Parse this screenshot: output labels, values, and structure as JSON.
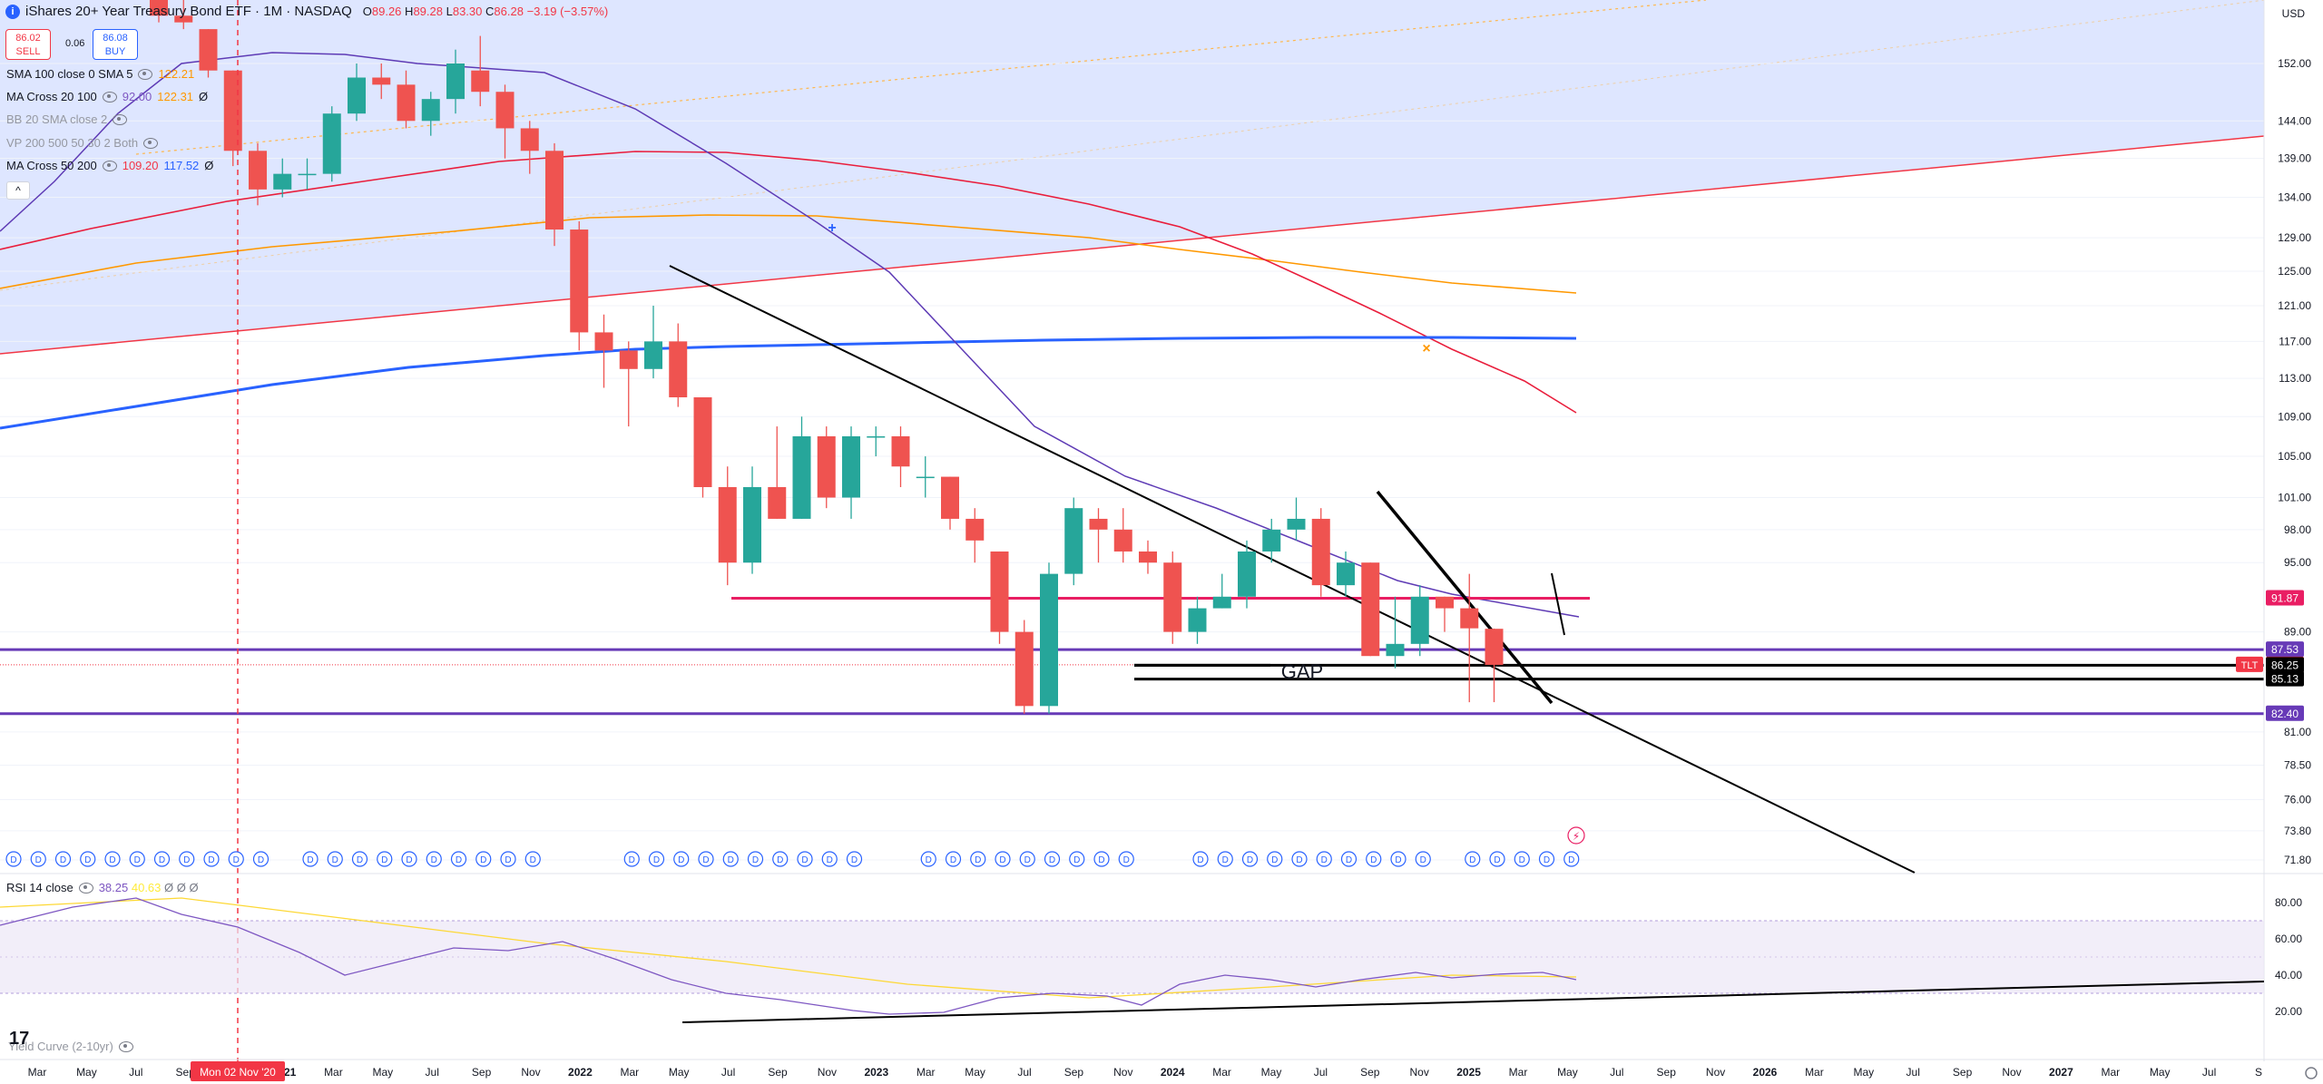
{
  "header": {
    "title": "iShares 20+ Year Treasury Bond ETF · 1M · NASDAQ",
    "ohlc": {
      "o_label": "O",
      "o": "89.26",
      "h_label": "H",
      "h": "89.28",
      "l_label": "L",
      "l": "83.30",
      "c_label": "C",
      "c": "86.28",
      "change": "−3.19 (−3.57%)"
    },
    "sell_price": "86.02",
    "sell_label": "SELL",
    "spread": "0.06",
    "buy_price": "86.08",
    "buy_label": "BUY",
    "currency": "USD"
  },
  "indicators": [
    {
      "name": "SMA 100 close 0 SMA 5",
      "values": [
        "122.21"
      ],
      "colors": [
        "#ff9800"
      ]
    },
    {
      "name": "MA Cross 20 100",
      "values": [
        "92.00",
        "122.31",
        "Ø"
      ],
      "colors": [
        "#7e57c2",
        "#ff9800",
        "#131722"
      ]
    },
    {
      "name": "BB 20 SMA close 2",
      "values": [],
      "colors": []
    },
    {
      "name": "VP 200 500 50 30 2 Both",
      "values": [],
      "colors": []
    },
    {
      "name": "MA Cross 50 200",
      "values": [
        "109.20",
        "117.52",
        "Ø"
      ],
      "colors": [
        "#f23645",
        "#2962ff",
        "#131722"
      ]
    }
  ],
  "collapse_label": "^",
  "rsi": {
    "name": "RSI 14 close",
    "values": [
      "38.25",
      "40.63",
      "Ø",
      "Ø",
      "Ø"
    ],
    "colors": [
      "#7e57c2",
      "#ffeb3b",
      "#787b86",
      "#787b86",
      "#787b86"
    ]
  },
  "yield_curve": {
    "name": "Yield Curve (2-10yr)"
  },
  "logo": "17",
  "annotations": {
    "gap_label": "GAP"
  },
  "vertical_marker": {
    "label": "Mon 02 Nov '20"
  },
  "price_axis": {
    "ticks": [
      "152.00",
      "144.00",
      "139.00",
      "134.00",
      "129.00",
      "125.00",
      "121.00",
      "117.00",
      "113.00",
      "109.00",
      "105.00",
      "101.00",
      "98.00",
      "95.00",
      "89.00",
      "81.00",
      "78.50",
      "76.00",
      "73.80",
      "71.80"
    ],
    "tick_values": [
      152,
      144,
      139,
      134,
      129,
      125,
      121,
      117,
      113,
      109,
      105,
      101,
      98,
      95,
      89,
      81,
      78.5,
      76,
      73.8,
      71.8
    ]
  },
  "price_labels": [
    {
      "text": "91.87",
      "value": 91.87,
      "color": "#e91e63",
      "text_color": "#ffffff"
    },
    {
      "text": "87.53",
      "value": 87.53,
      "color": "#673ab7",
      "text_color": "#ffffff"
    },
    {
      "text": "86.28",
      "value": 86.28,
      "color": "#f23645",
      "text_color": "#ffffff",
      "tag": "TLT"
    },
    {
      "text": "86.25",
      "value": 86.25,
      "color": "#000000",
      "text_color": "#ffffff"
    },
    {
      "text": "85.13",
      "value": 85.13,
      "color": "#000000",
      "text_color": "#ffffff"
    },
    {
      "text": "82.40",
      "value": 82.4,
      "color": "#673ab7",
      "text_color": "#ffffff"
    }
  ],
  "rsi_axis": {
    "ticks": [
      "80.00",
      "60.00",
      "40.00",
      "20.00"
    ],
    "tick_values": [
      80,
      60,
      40,
      20
    ]
  },
  "time_axis": {
    "labels": [
      "Mar",
      "May",
      "Jul",
      "Sep",
      "Nov",
      "2021",
      "Mar",
      "May",
      "Jul",
      "Sep",
      "Nov",
      "2022",
      "Mar",
      "May",
      "Jul",
      "Sep",
      "Nov",
      "2023",
      "Mar",
      "May",
      "Jul",
      "Sep",
      "Nov",
      "2024",
      "Mar",
      "May",
      "Jul",
      "Sep",
      "Nov",
      "2025",
      "Mar",
      "May",
      "Jul",
      "Sep",
      "Nov",
      "2026",
      "Mar",
      "May",
      "Jul",
      "Sep",
      "Nov",
      "2027",
      "Mar",
      "May",
      "Jul",
      "S"
    ],
    "months_index": [
      2,
      4,
      6,
      8,
      10,
      12,
      14,
      16,
      18,
      20,
      22,
      24,
      26,
      28,
      30,
      32,
      34,
      36,
      38,
      40,
      42,
      44,
      46,
      48,
      50,
      52,
      54,
      56,
      58,
      60,
      62,
      64,
      66,
      68,
      70,
      72,
      74,
      76,
      78,
      80,
      82,
      84,
      86,
      88,
      90,
      92
    ]
  },
  "dividend_marker": "D",
  "chart_data": {
    "type": "candlestick",
    "symbol": "TLT",
    "interval": "1M",
    "candles": [
      {
        "t": "2020-11",
        "o": 163,
        "h": 163,
        "l": 158,
        "c": 159
      },
      {
        "t": "2020-12",
        "o": 159,
        "h": 162,
        "l": 157,
        "c": 158
      },
      {
        "t": "2021-01",
        "o": 157,
        "h": 157,
        "l": 150,
        "c": 151
      },
      {
        "t": "2021-02",
        "o": 151,
        "h": 151,
        "l": 138,
        "c": 140
      },
      {
        "t": "2021-03",
        "o": 140,
        "h": 141,
        "l": 133,
        "c": 135
      },
      {
        "t": "2021-04",
        "o": 135,
        "h": 139,
        "l": 134,
        "c": 137
      },
      {
        "t": "2021-05",
        "o": 137,
        "h": 139,
        "l": 135,
        "c": 137
      },
      {
        "t": "2021-06",
        "o": 137,
        "h": 146,
        "l": 136,
        "c": 145
      },
      {
        "t": "2021-07",
        "o": 145,
        "h": 152,
        "l": 144,
        "c": 150
      },
      {
        "t": "2021-08",
        "o": 150,
        "h": 152,
        "l": 147,
        "c": 149
      },
      {
        "t": "2021-09",
        "o": 149,
        "h": 151,
        "l": 143,
        "c": 144
      },
      {
        "t": "2021-10",
        "o": 144,
        "h": 148,
        "l": 142,
        "c": 147
      },
      {
        "t": "2021-11",
        "o": 147,
        "h": 154,
        "l": 145,
        "c": 152
      },
      {
        "t": "2021-12",
        "o": 151,
        "h": 156,
        "l": 146,
        "c": 148
      },
      {
        "t": "2022-01",
        "o": 148,
        "h": 149,
        "l": 139,
        "c": 143
      },
      {
        "t": "2022-02",
        "o": 143,
        "h": 144,
        "l": 137,
        "c": 140
      },
      {
        "t": "2022-03",
        "o": 140,
        "h": 141,
        "l": 128,
        "c": 130
      },
      {
        "t": "2022-04",
        "o": 130,
        "h": 131,
        "l": 116,
        "c": 118
      },
      {
        "t": "2022-05",
        "o": 118,
        "h": 120,
        "l": 112,
        "c": 116
      },
      {
        "t": "2022-06",
        "o": 116,
        "h": 117,
        "l": 108,
        "c": 114
      },
      {
        "t": "2022-07",
        "o": 114,
        "h": 121,
        "l": 113,
        "c": 117
      },
      {
        "t": "2022-08",
        "o": 117,
        "h": 119,
        "l": 110,
        "c": 111
      },
      {
        "t": "2022-09",
        "o": 111,
        "h": 111,
        "l": 101,
        "c": 102
      },
      {
        "t": "2022-10",
        "o": 102,
        "h": 104,
        "l": 93,
        "c": 95
      },
      {
        "t": "2022-11",
        "o": 95,
        "h": 104,
        "l": 94,
        "c": 102
      },
      {
        "t": "2022-12",
        "o": 102,
        "h": 108,
        "l": 99,
        "c": 99
      },
      {
        "t": "2023-01",
        "o": 99,
        "h": 109,
        "l": 99,
        "c": 107
      },
      {
        "t": "2023-02",
        "o": 107,
        "h": 108,
        "l": 100,
        "c": 101
      },
      {
        "t": "2023-03",
        "o": 101,
        "h": 108,
        "l": 99,
        "c": 107
      },
      {
        "t": "2023-04",
        "o": 107,
        "h": 108,
        "l": 105,
        "c": 107
      },
      {
        "t": "2023-05",
        "o": 107,
        "h": 108,
        "l": 102,
        "c": 104
      },
      {
        "t": "2023-06",
        "o": 103,
        "h": 105,
        "l": 101,
        "c": 103
      },
      {
        "t": "2023-07",
        "o": 103,
        "h": 103,
        "l": 98,
        "c": 99
      },
      {
        "t": "2023-08",
        "o": 99,
        "h": 100,
        "l": 95,
        "c": 97
      },
      {
        "t": "2023-09",
        "o": 96,
        "h": 96,
        "l": 88,
        "c": 89
      },
      {
        "t": "2023-10",
        "o": 89,
        "h": 90,
        "l": 82.4,
        "c": 83
      },
      {
        "t": "2023-11",
        "o": 83,
        "h": 95,
        "l": 82.4,
        "c": 94
      },
      {
        "t": "2023-12",
        "o": 94,
        "h": 101,
        "l": 93,
        "c": 100
      },
      {
        "t": "2024-01",
        "o": 99,
        "h": 100,
        "l": 95,
        "c": 98
      },
      {
        "t": "2024-02",
        "o": 98,
        "h": 100,
        "l": 95,
        "c": 96
      },
      {
        "t": "2024-03",
        "o": 96,
        "h": 97,
        "l": 94,
        "c": 95
      },
      {
        "t": "2024-04",
        "o": 95,
        "h": 96,
        "l": 88,
        "c": 89
      },
      {
        "t": "2024-05",
        "o": 89,
        "h": 92,
        "l": 88,
        "c": 91
      },
      {
        "t": "2024-06",
        "o": 91,
        "h": 94,
        "l": 91,
        "c": 92
      },
      {
        "t": "2024-07",
        "o": 92,
        "h": 97,
        "l": 91,
        "c": 96
      },
      {
        "t": "2024-08",
        "o": 96,
        "h": 99,
        "l": 95,
        "c": 98
      },
      {
        "t": "2024-09",
        "o": 98,
        "h": 101,
        "l": 97,
        "c": 99
      },
      {
        "t": "2024-10",
        "o": 99,
        "h": 100,
        "l": 92,
        "c": 93
      },
      {
        "t": "2024-11",
        "o": 93,
        "h": 96,
        "l": 92,
        "c": 95
      },
      {
        "t": "2024-12",
        "o": 95,
        "h": 95,
        "l": 87,
        "c": 87
      },
      {
        "t": "2025-01",
        "o": 87,
        "h": 92,
        "l": 86,
        "c": 88
      },
      {
        "t": "2025-02",
        "o": 88,
        "h": 93,
        "l": 87,
        "c": 92
      },
      {
        "t": "2025-03",
        "o": 92,
        "h": 92,
        "l": 89,
        "c": 91
      },
      {
        "t": "2025-04",
        "o": 91,
        "h": 94,
        "l": 83.3,
        "c": 89.3
      },
      {
        "t": "2025-05",
        "o": 89.26,
        "h": 89.28,
        "l": 83.3,
        "c": 86.28
      }
    ],
    "horizontal_levels": [
      91.87,
      87.53,
      86.25,
      85.13,
      82.4
    ],
    "rsi_range": [
      20,
      80
    ],
    "rsi_bands": [
      70,
      30
    ]
  }
}
